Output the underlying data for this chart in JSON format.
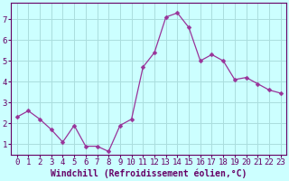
{
  "x": [
    0,
    1,
    2,
    3,
    4,
    5,
    6,
    7,
    8,
    9,
    10,
    11,
    12,
    13,
    14,
    15,
    16,
    17,
    18,
    19,
    20,
    21,
    22,
    23
  ],
  "y": [
    2.3,
    2.6,
    2.2,
    1.7,
    1.1,
    1.9,
    0.9,
    0.9,
    0.65,
    1.9,
    2.2,
    4.7,
    5.4,
    7.1,
    7.3,
    6.6,
    5.0,
    5.3,
    5.0,
    4.1,
    4.2,
    3.9,
    3.6,
    3.45
  ],
  "line_color": "#993399",
  "marker": "D",
  "marker_size": 2.5,
  "bg_color": "#ccffff",
  "grid_color": "#aadddd",
  "xlabel": "Windchill (Refroidissement éolien,°C)",
  "ylabel": "",
  "xlim": [
    -0.5,
    23.5
  ],
  "ylim": [
    0.5,
    7.8
  ],
  "yticks": [
    1,
    2,
    3,
    4,
    5,
    6,
    7
  ],
  "xticks": [
    0,
    1,
    2,
    3,
    4,
    5,
    6,
    7,
    8,
    9,
    10,
    11,
    12,
    13,
    14,
    15,
    16,
    17,
    18,
    19,
    20,
    21,
    22,
    23
  ],
  "xlabel_fontsize": 7.0,
  "tick_fontsize": 6.5,
  "axis_color": "#660066",
  "spine_color": "#660066"
}
